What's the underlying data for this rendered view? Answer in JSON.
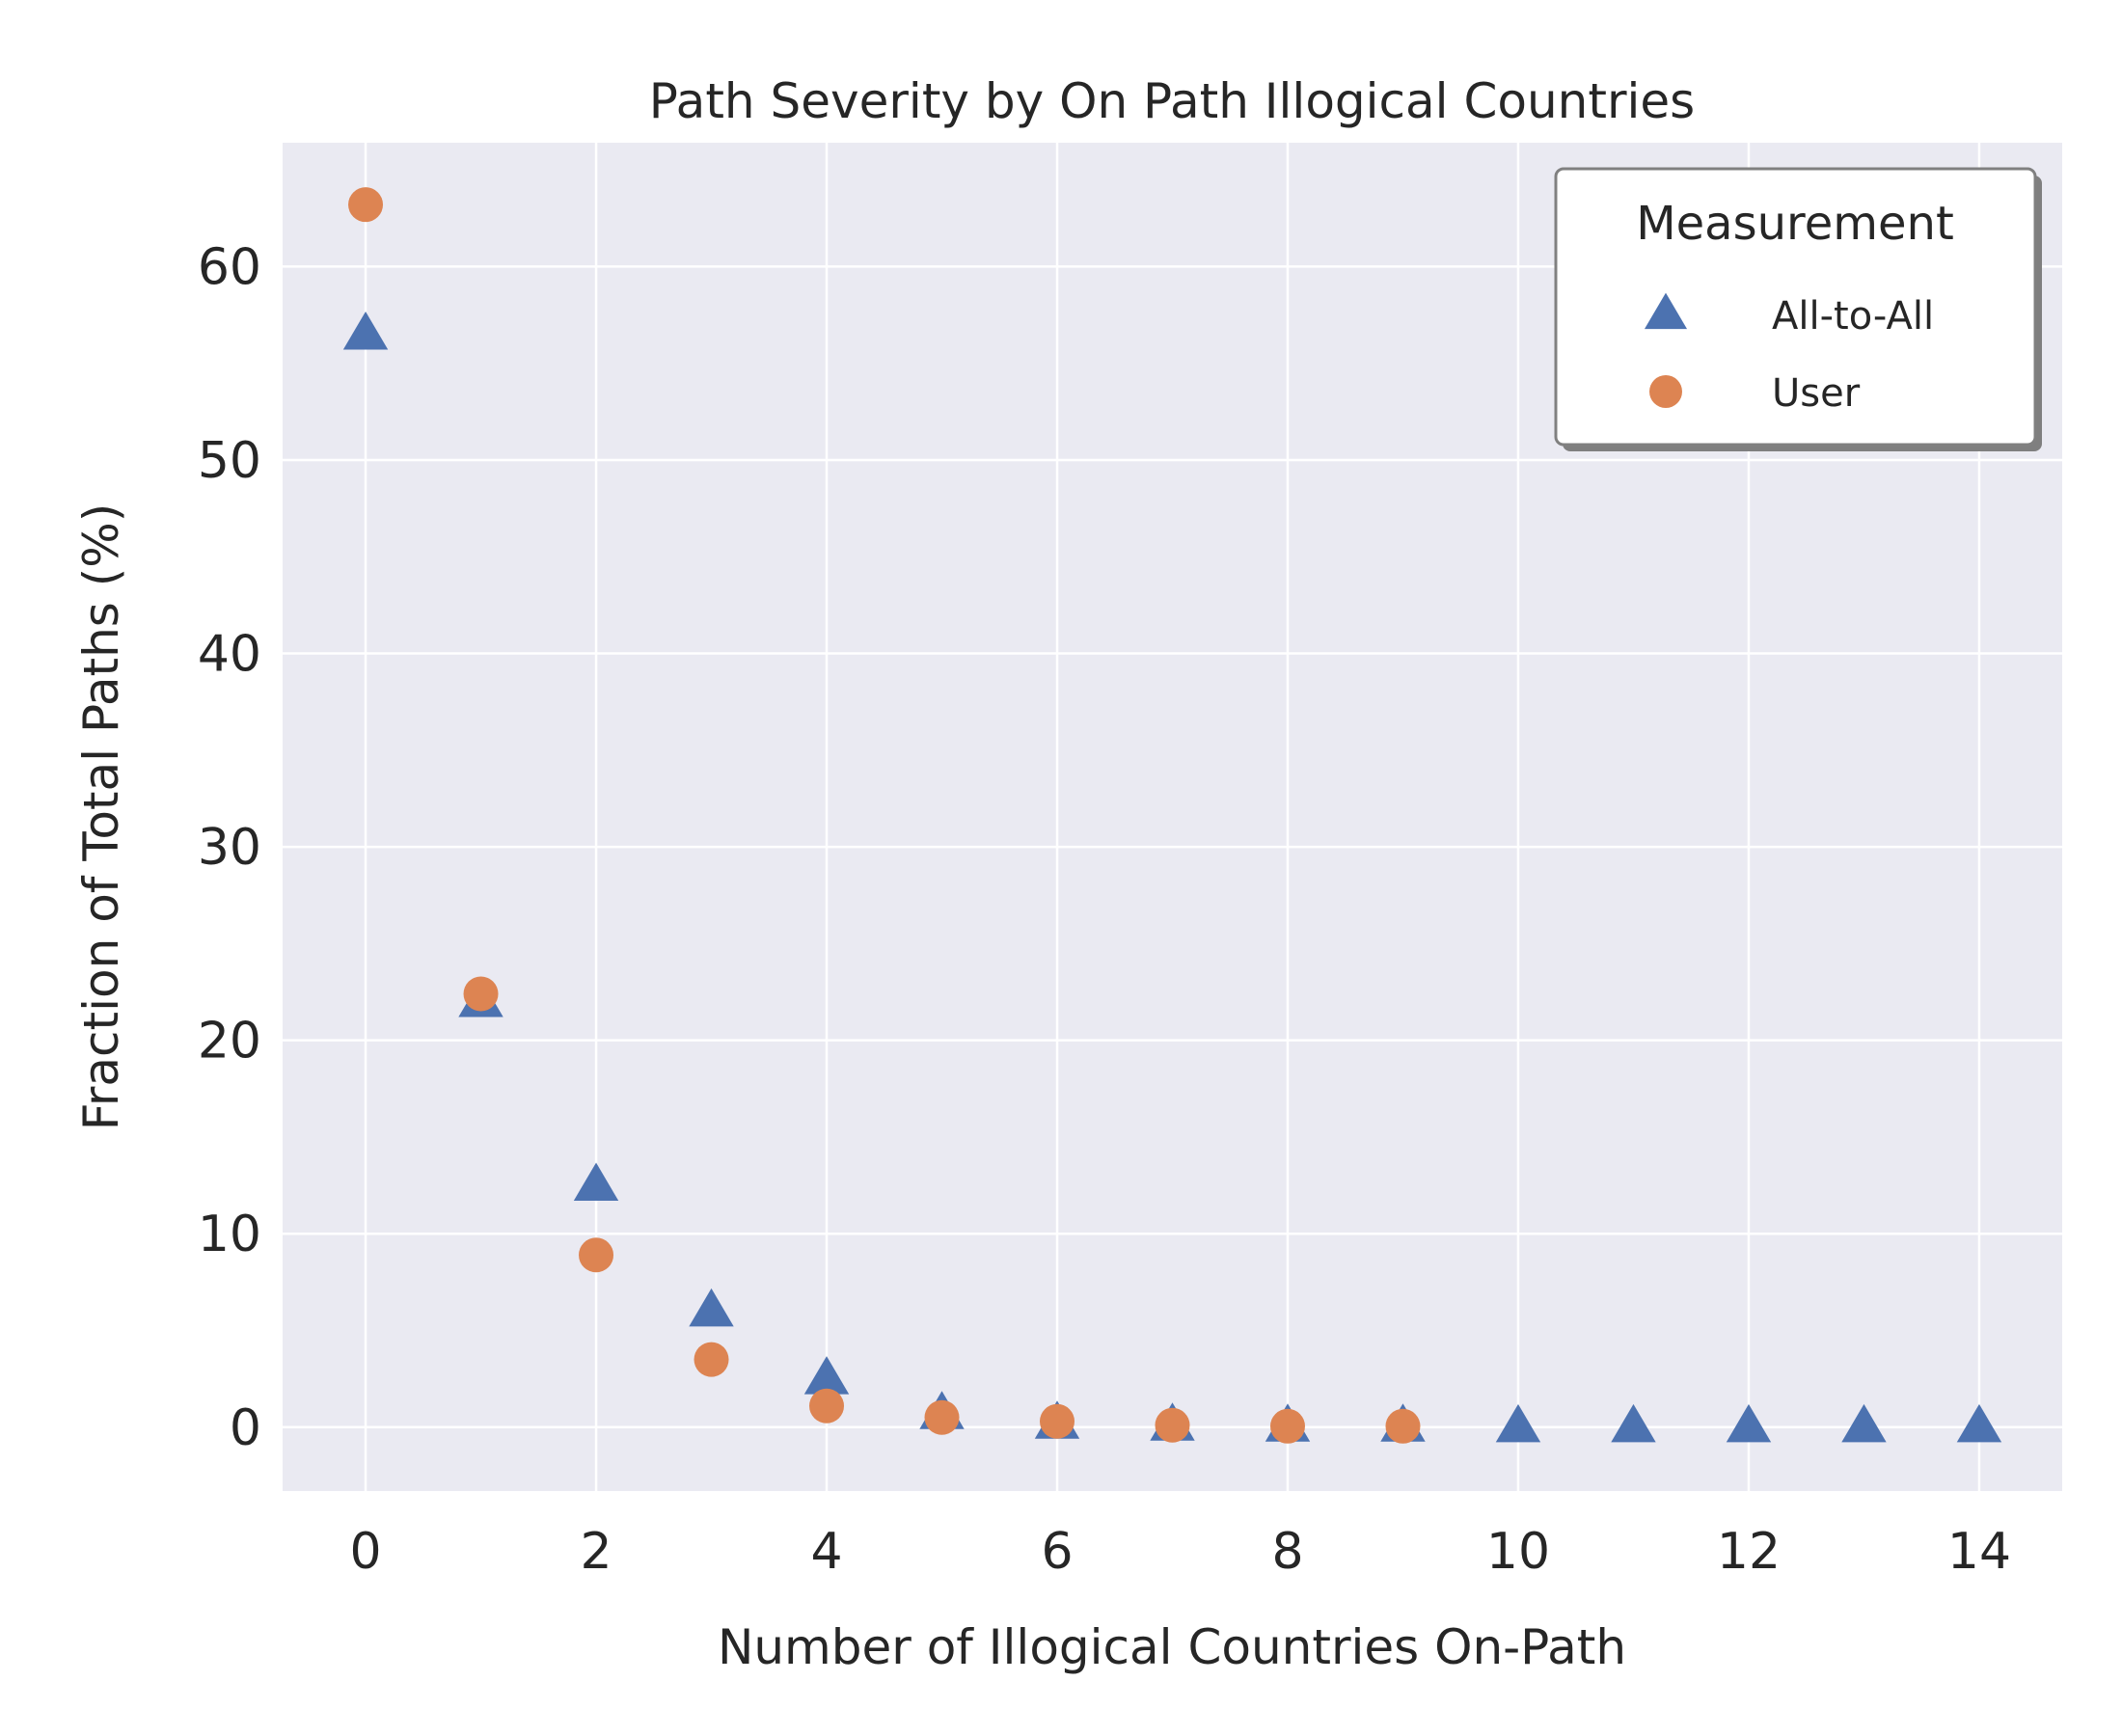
{
  "chart_data": {
    "type": "scatter",
    "title": "Path Severity by On Path Illogical Countries",
    "xlabel": "Number of Illogical Countries On-Path",
    "ylabel": "Fraction of Total Paths (%)",
    "xlim": [
      -0.72,
      14.72
    ],
    "ylim": [
      -3.3,
      66.4
    ],
    "xticks": [
      0,
      2,
      4,
      6,
      8,
      10,
      12,
      14
    ],
    "yticks": [
      0,
      10,
      20,
      30,
      40,
      50,
      60
    ],
    "grid": true,
    "legend": {
      "title": "Measurement",
      "placement": "top-right"
    },
    "series": [
      {
        "name": "All-to-All",
        "marker": "triangle",
        "color": "#4c72b0",
        "x": [
          0,
          1,
          2,
          3,
          4,
          5,
          6,
          7,
          8,
          9,
          10,
          11,
          12,
          13,
          14
        ],
        "y": [
          56.5,
          22.0,
          12.5,
          6.0,
          2.5,
          0.7,
          0.2,
          0.1,
          0.05,
          0.05,
          0.02,
          0.02,
          0.02,
          0.02,
          0.02
        ]
      },
      {
        "name": "User",
        "marker": "circle",
        "color": "#dd8452",
        "x": [
          0,
          1,
          2,
          3,
          4,
          5,
          6,
          7,
          8,
          9
        ],
        "y": [
          63.2,
          22.4,
          8.9,
          3.5,
          1.1,
          0.5,
          0.3,
          0.1,
          0.05,
          0.05
        ]
      }
    ]
  }
}
